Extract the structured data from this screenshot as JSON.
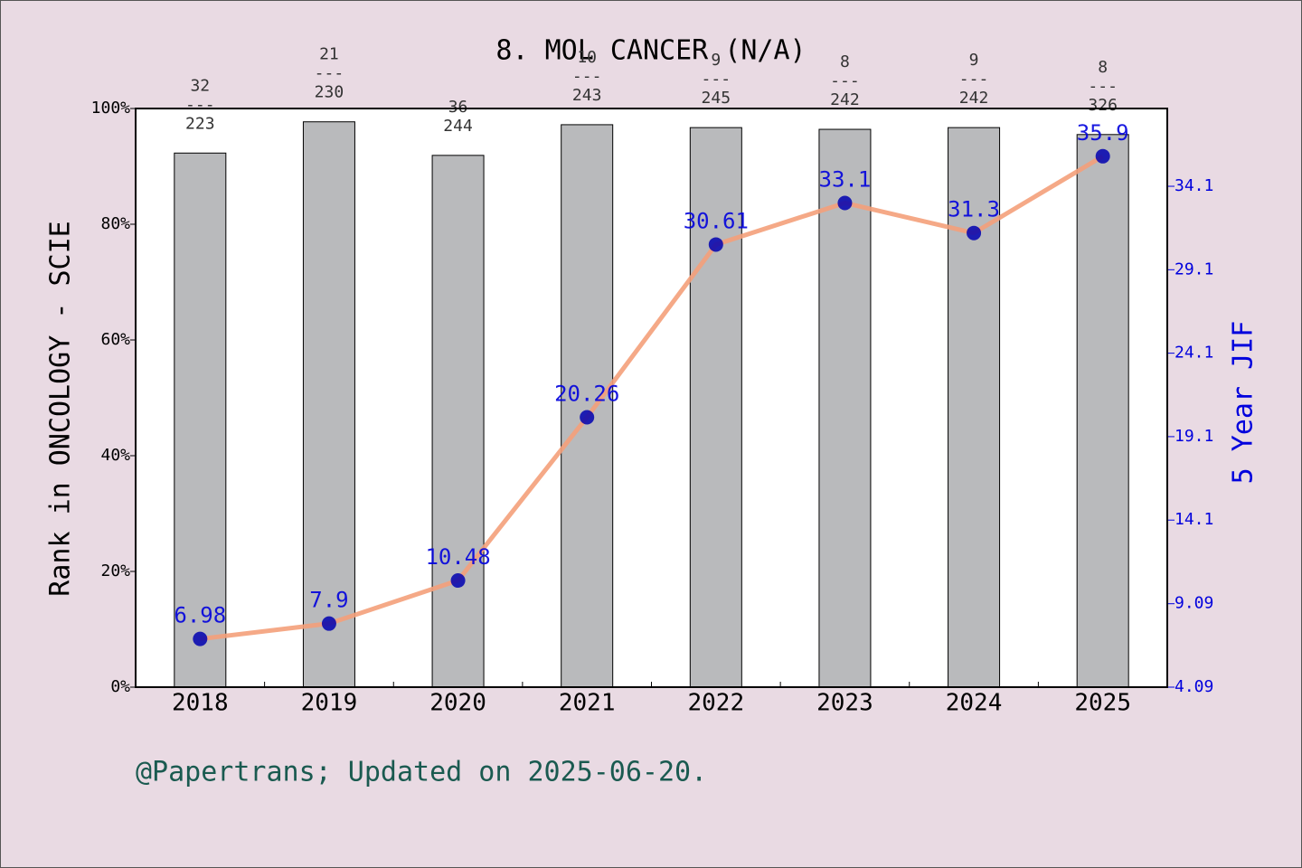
{
  "chart_data": {
    "type": "bar",
    "title": "8. MOL CANCER (N/A)",
    "y_label": "Rank in ONCOLOGY - SCIE",
    "y2_label": "5 Year JIF",
    "footer": "@Papertrans; Updated on 2025-06-20.",
    "categories": [
      "2018",
      "2019",
      "2020",
      "2021",
      "2022",
      "2023",
      "2024",
      "2025"
    ],
    "series": [
      {
        "type": "bar",
        "color": "#b9babc",
        "values": [
          92.3,
          97.7,
          91.9,
          97.2,
          96.7,
          96.4,
          96.7,
          95.5
        ],
        "annotations": [
          "32\n---\n223",
          "21\n---\n230",
          "36\n244",
          "10\n---\n243",
          "9\n---\n245",
          "8\n---\n242",
          "9\n---\n242",
          "8\n---\n326"
        ]
      },
      {
        "type": "line",
        "axis": "y2",
        "color": "#f4a07a",
        "marker_color": "#0000b0",
        "label_color": "#0000dd",
        "values": [
          6.98,
          7.9,
          10.48,
          20.26,
          30.61,
          33.1,
          31.3,
          35.9
        ]
      }
    ],
    "ylim": [
      0,
      100
    ],
    "yticks": [
      {
        "value": 0,
        "label": "0%"
      },
      {
        "value": 20,
        "label": "20%"
      },
      {
        "value": 40,
        "label": "40%"
      },
      {
        "value": 60,
        "label": "60%"
      },
      {
        "value": 80,
        "label": "80%"
      },
      {
        "value": 100,
        "label": "100%"
      }
    ],
    "y2lim": [
      4.09,
      38.76
    ],
    "y2ticks": [
      4.09,
      9.09,
      14.1,
      19.1,
      24.1,
      29.1,
      34.1
    ]
  }
}
